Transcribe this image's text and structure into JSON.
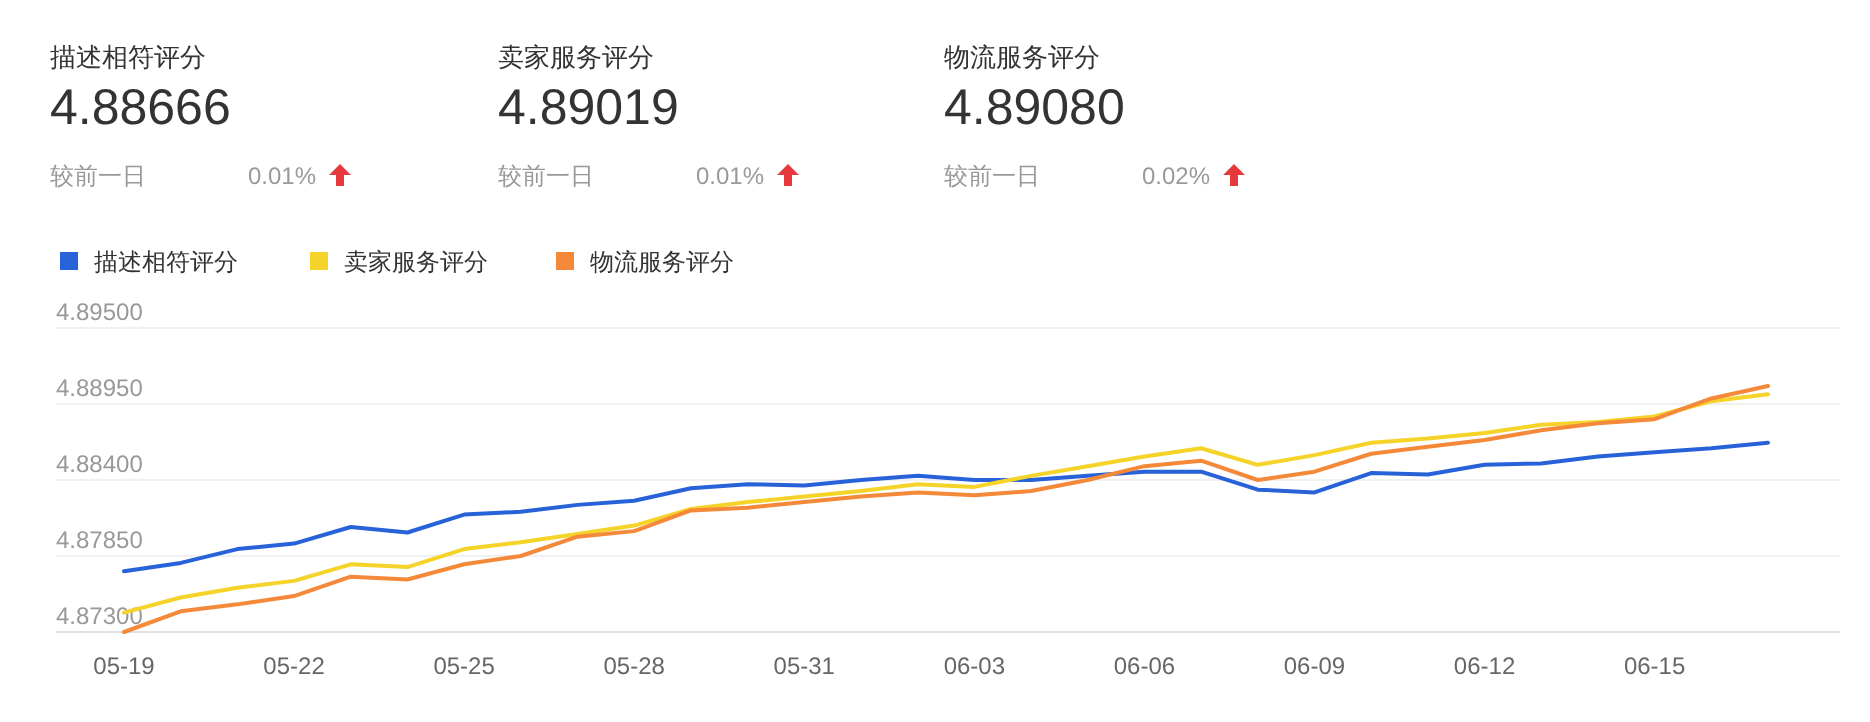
{
  "chart_data": [
    {
      "type": "other",
      "title": "描述相符评分",
      "annotations": [
        "4.88666",
        "较前一日",
        "0.01%"
      ]
    },
    {
      "type": "other",
      "title": "卖家服务评分",
      "annotations": [
        "4.89019",
        "较前一日",
        "0.01%"
      ]
    },
    {
      "type": "other",
      "title": "物流服务评分",
      "annotations": [
        "4.89080",
        "较前一日",
        "0.02%"
      ]
    },
    {
      "type": "line",
      "categories": [
        "05-19",
        null,
        null,
        "05-22",
        null,
        null,
        "05-25",
        null,
        null,
        "05-28",
        null,
        null,
        "05-31",
        null,
        null,
        "06-03",
        null,
        null,
        "06-06",
        null,
        null,
        "06-09",
        null,
        null,
        "06-12",
        null,
        null,
        "06-15",
        null,
        null
      ],
      "series": [
        {
          "name": "描述相符评分",
          "color": "#2862d8",
          "values": [
            4.8774,
            4.878,
            4.879,
            4.8794,
            4.8806,
            4.8802,
            4.8815,
            4.8817,
            4.8822,
            4.8825,
            4.8834,
            4.8837,
            4.8836,
            4.884,
            4.8843,
            4.884,
            4.884,
            4.8843,
            4.8846,
            4.8846,
            4.8833,
            4.8831,
            4.8845,
            4.8844,
            4.8851,
            4.8852,
            4.8857,
            4.886,
            4.8863,
            4.8867
          ]
        },
        {
          "name": "卖家服务评分",
          "color": "#f5d328",
          "values": [
            4.8744,
            4.8755,
            4.8762,
            4.8767,
            4.8779,
            4.8777,
            4.879,
            4.8795,
            4.8801,
            4.8807,
            4.8819,
            4.8824,
            4.8828,
            4.8832,
            4.8837,
            4.8835,
            4.8843,
            4.885,
            4.8857,
            4.8863,
            4.8851,
            4.8858,
            4.8867,
            4.887,
            4.8874,
            4.888,
            4.8882,
            4.8886,
            4.8897,
            4.8902
          ]
        },
        {
          "name": "物流服务评分",
          "color": "#f5893a",
          "values": [
            4.873,
            4.8745,
            4.875,
            4.8756,
            4.877,
            4.8768,
            4.8779,
            4.8785,
            4.8799,
            4.8803,
            4.8818,
            4.882,
            4.8824,
            4.8828,
            4.8831,
            4.8829,
            4.8832,
            4.884,
            4.885,
            4.8854,
            4.884,
            4.8846,
            4.8859,
            4.8864,
            4.8869,
            4.8876,
            4.8881,
            4.8884,
            4.8899,
            4.8908
          ]
        }
      ],
      "ylim": [
        4.873,
        4.895
      ],
      "yticks": [
        {
          "value": 4.873,
          "label": "4.87300"
        },
        {
          "value": 4.8785,
          "label": "4.87850"
        },
        {
          "value": 4.884,
          "label": "4.88400"
        },
        {
          "value": 4.8895,
          "label": "4.88950"
        },
        {
          "value": 4.895,
          "label": "4.89500"
        }
      ],
      "grid": "y",
      "legend": "top left"
    }
  ]
}
